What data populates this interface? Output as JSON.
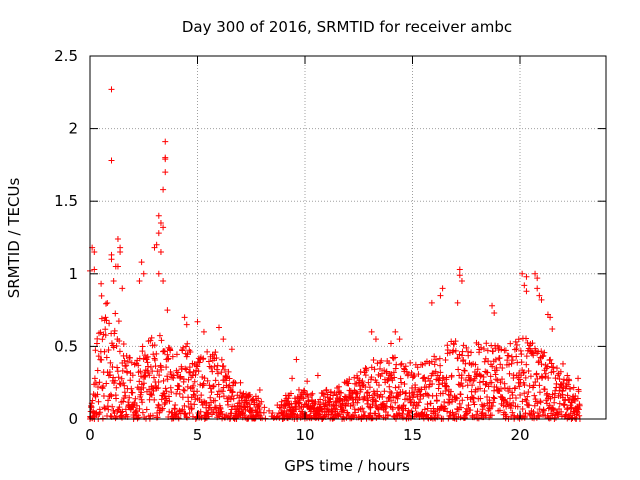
{
  "chart_data": {
    "type": "scatter",
    "title": "Day 300 of 2016, SRMTID for receiver ambc",
    "xlabel": "GPS time / hours",
    "ylabel": "SRMTID / TECUs",
    "xlim": [
      0,
      24
    ],
    "ylim": [
      0,
      2.5
    ],
    "xticks": [
      0,
      5,
      10,
      15,
      20
    ],
    "xtick_labels": [
      "0",
      "5",
      "10",
      "15",
      "20"
    ],
    "yticks": [
      0,
      0.5,
      1,
      1.5,
      2,
      2.5
    ],
    "ytick_labels": [
      "0",
      "0.5",
      "1",
      "1.5",
      "2",
      "2.5"
    ],
    "grid": true,
    "marker": "+",
    "color": "#ff0000",
    "highlights": [
      [
        1.0,
        2.27
      ],
      [
        1.0,
        1.78
      ],
      [
        3.5,
        1.91
      ],
      [
        3.5,
        1.8
      ],
      [
        3.5,
        1.79
      ],
      [
        3.5,
        1.7
      ],
      [
        3.4,
        1.58
      ],
      [
        3.2,
        1.4
      ],
      [
        3.3,
        1.35
      ],
      [
        3.4,
        1.32
      ],
      [
        3.2,
        1.28
      ],
      [
        3.1,
        1.2
      ],
      [
        3.3,
        1.15
      ],
      [
        3.0,
        1.18
      ],
      [
        0.1,
        1.18
      ],
      [
        0.2,
        1.15
      ],
      [
        0.0,
        1.02
      ],
      [
        0.2,
        1.03
      ],
      [
        1.0,
        1.13
      ],
      [
        1.0,
        1.1
      ],
      [
        1.2,
        1.05
      ],
      [
        1.1,
        0.95
      ],
      [
        1.3,
        1.24
      ],
      [
        1.4,
        1.18
      ],
      [
        1.4,
        1.15
      ],
      [
        1.3,
        1.05
      ],
      [
        1.5,
        0.9
      ],
      [
        2.4,
        1.08
      ],
      [
        2.5,
        1.0
      ],
      [
        2.3,
        0.95
      ],
      [
        3.2,
        1.0
      ],
      [
        3.4,
        0.95
      ],
      [
        3.6,
        0.75
      ],
      [
        17.2,
        1.03
      ],
      [
        17.2,
        0.99
      ],
      [
        17.3,
        0.95
      ],
      [
        16.4,
        0.9
      ],
      [
        16.3,
        0.85
      ],
      [
        15.9,
        0.8
      ],
      [
        17.1,
        0.8
      ],
      [
        18.7,
        0.78
      ],
      [
        18.8,
        0.73
      ],
      [
        20.1,
        1.0
      ],
      [
        20.3,
        0.98
      ],
      [
        20.2,
        0.92
      ],
      [
        20.3,
        0.88
      ],
      [
        20.7,
        1.0
      ],
      [
        20.8,
        0.97
      ],
      [
        20.8,
        0.9
      ],
      [
        20.9,
        0.85
      ],
      [
        21.0,
        0.82
      ],
      [
        21.3,
        0.72
      ],
      [
        21.5,
        0.62
      ],
      [
        21.4,
        0.7
      ],
      [
        9.6,
        0.41
      ],
      [
        10.6,
        0.3
      ],
      [
        13.1,
        0.6
      ],
      [
        13.3,
        0.55
      ],
      [
        14.2,
        0.6
      ],
      [
        14.4,
        0.55
      ],
      [
        14.0,
        0.52
      ],
      [
        4.4,
        0.7
      ],
      [
        4.5,
        0.65
      ],
      [
        5.0,
        0.67
      ],
      [
        5.3,
        0.6
      ],
      [
        6.0,
        0.63
      ],
      [
        6.2,
        0.55
      ],
      [
        6.6,
        0.48
      ],
      [
        7.0,
        0.25
      ],
      [
        7.9,
        0.2
      ],
      [
        9.4,
        0.28
      ],
      [
        10.1,
        0.26
      ],
      [
        22.7,
        0.28
      ],
      [
        22.0,
        0.38
      ],
      [
        22.2,
        0.3
      ]
    ],
    "envelope": [
      [
        0.0,
        0.0
      ],
      [
        0.5,
        0.9
      ],
      [
        1.0,
        0.8
      ],
      [
        1.5,
        0.6
      ],
      [
        2.0,
        0.4
      ],
      [
        2.5,
        0.5
      ],
      [
        3.0,
        0.55
      ],
      [
        3.5,
        0.55
      ],
      [
        4.0,
        0.45
      ],
      [
        4.5,
        0.5
      ],
      [
        5.0,
        0.45
      ],
      [
        5.5,
        0.45
      ],
      [
        6.0,
        0.45
      ],
      [
        6.5,
        0.3
      ],
      [
        7.0,
        0.2
      ],
      [
        7.5,
        0.17
      ],
      [
        8.0,
        0.12
      ],
      [
        8.5,
        0.05
      ],
      [
        9.0,
        0.15
      ],
      [
        9.5,
        0.2
      ],
      [
        10.0,
        0.2
      ],
      [
        10.5,
        0.15
      ],
      [
        11.0,
        0.2
      ],
      [
        11.5,
        0.22
      ],
      [
        12.0,
        0.28
      ],
      [
        12.5,
        0.3
      ],
      [
        13.0,
        0.38
      ],
      [
        13.5,
        0.4
      ],
      [
        14.0,
        0.42
      ],
      [
        14.5,
        0.4
      ],
      [
        15.0,
        0.36
      ],
      [
        15.5,
        0.36
      ],
      [
        16.0,
        0.42
      ],
      [
        16.5,
        0.5
      ],
      [
        17.0,
        0.55
      ],
      [
        17.5,
        0.5
      ],
      [
        18.0,
        0.5
      ],
      [
        18.5,
        0.5
      ],
      [
        19.0,
        0.48
      ],
      [
        19.5,
        0.5
      ],
      [
        20.0,
        0.55
      ],
      [
        20.5,
        0.52
      ],
      [
        21.0,
        0.48
      ],
      [
        21.5,
        0.4
      ],
      [
        22.0,
        0.3
      ],
      [
        22.5,
        0.25
      ],
      [
        22.8,
        0.2
      ]
    ]
  }
}
